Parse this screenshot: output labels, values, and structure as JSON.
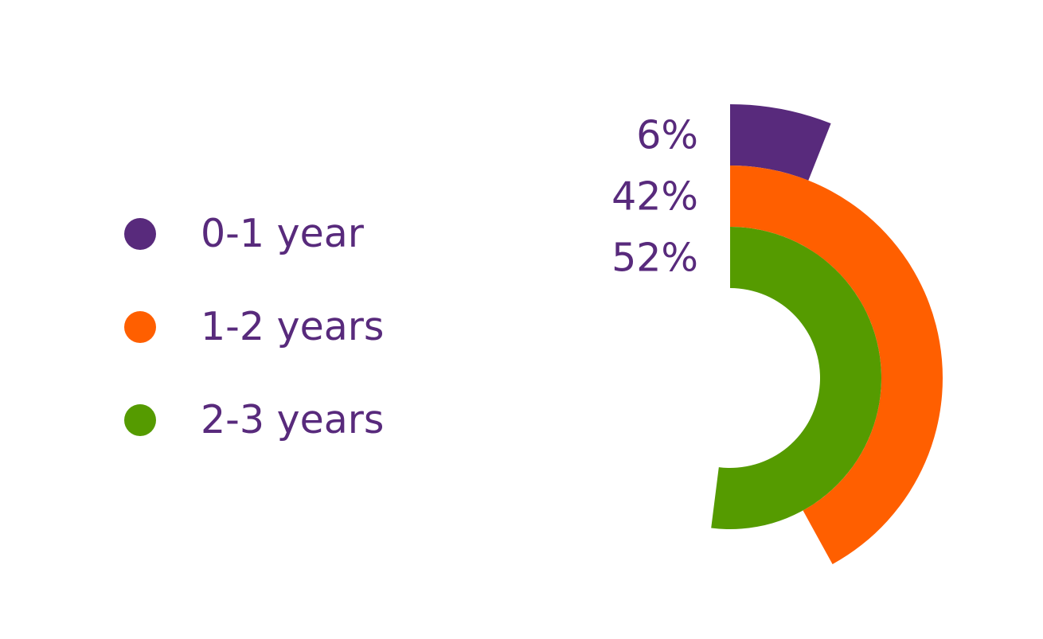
{
  "chart_data": {
    "type": "radial-bar",
    "series": [
      {
        "name": "0-1 year",
        "value": 6,
        "label": "6%",
        "color": "#582a7c"
      },
      {
        "name": "1-2 years",
        "value": 42,
        "label": "42%",
        "color": "#ff5f00"
      },
      {
        "name": "2-3 years",
        "value": 52,
        "label": "52%",
        "color": "#559b00"
      }
    ],
    "max_value": 100,
    "unit": "%",
    "legend_position": "left",
    "text_color": "#582a7c"
  }
}
